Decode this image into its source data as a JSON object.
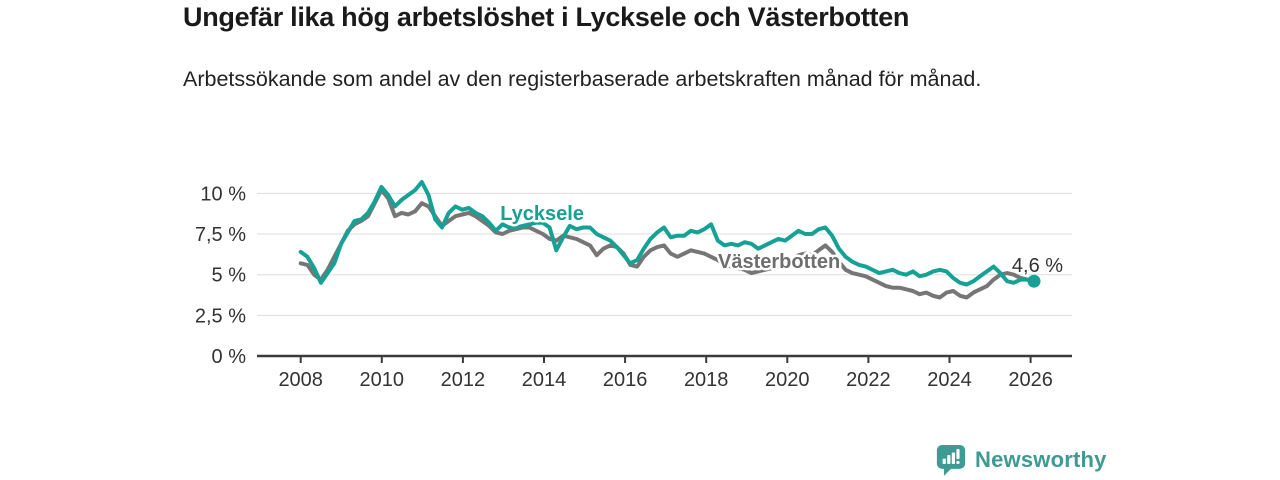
{
  "header": {
    "title": "Ungefär lika hög arbetslöshet i Lycksele och Västerbotten",
    "subtitle": "Arbetssökande som andel av den registerbaserade arbetskraften månad för månad."
  },
  "chart_data": {
    "type": "line",
    "title": "Ungefär lika hög arbetslöshet i Lycksele och Västerbotten",
    "subtitle": "Arbetssökande som andel av den registerbaserade arbetskraften månad för månad.",
    "grid": "horizontal",
    "legend_position": "inline-labels",
    "x": {
      "start": 2008.0,
      "end": 2026.083,
      "ticks": [
        {
          "value": 2008,
          "label": "2008"
        },
        {
          "value": 2010,
          "label": "2010"
        },
        {
          "value": 2012,
          "label": "2012"
        },
        {
          "value": 2014,
          "label": "2014"
        },
        {
          "value": 2016,
          "label": "2016"
        },
        {
          "value": 2018,
          "label": "2018"
        },
        {
          "value": 2020,
          "label": "2020"
        },
        {
          "value": 2022,
          "label": "2022"
        },
        {
          "value": 2024,
          "label": "2024"
        },
        {
          "value": 2026,
          "label": "2026"
        }
      ]
    },
    "y": {
      "min": 0,
      "max": 10,
      "unit": "%",
      "ticks": [
        {
          "value": 0,
          "label": "0 %"
        },
        {
          "value": 2.5,
          "label": "2,5 %"
        },
        {
          "value": 5,
          "label": "5 %"
        },
        {
          "value": 7.5,
          "label": "7,5 %"
        },
        {
          "value": 10,
          "label": "10 %"
        }
      ]
    },
    "series": [
      {
        "name": "Västerbotten",
        "color": "#767676",
        "stroke_width": 4,
        "end_dot": false,
        "values": [
          5.7,
          5.6,
          5.0,
          4.7,
          5.3,
          6.1,
          6.9,
          7.7,
          8.1,
          8.3,
          8.6,
          9.4,
          10.2,
          9.7,
          8.6,
          8.8,
          8.7,
          8.9,
          9.4,
          9.2,
          8.6,
          8.0,
          8.3,
          8.6,
          8.7,
          8.8,
          8.6,
          8.3,
          8.0,
          7.6,
          7.5,
          7.7,
          7.8,
          7.9,
          7.9,
          7.7,
          7.5,
          7.2,
          7.1,
          7.4,
          7.3,
          7.2,
          7.0,
          6.8,
          6.2,
          6.6,
          6.8,
          6.7,
          6.3,
          5.6,
          5.5,
          6.1,
          6.5,
          6.7,
          6.8,
          6.3,
          6.1,
          6.3,
          6.5,
          6.4,
          6.3,
          6.1,
          5.9,
          5.6,
          5.5,
          5.4,
          5.3,
          5.1,
          5.2,
          5.3,
          5.4,
          5.5,
          5.6,
          5.9,
          6.2,
          6.3,
          6.2,
          6.5,
          6.8,
          6.4,
          5.8,
          5.3,
          5.1,
          5.0,
          4.9,
          4.7,
          4.5,
          4.3,
          4.2,
          4.2,
          4.1,
          4.0,
          3.8,
          3.9,
          3.7,
          3.6,
          3.9,
          4.0,
          3.7,
          3.6,
          3.9,
          4.1,
          4.3,
          4.7,
          5.0,
          5.1,
          5.0,
          4.8,
          4.7,
          4.6
        ]
      },
      {
        "name": "Lycksele",
        "color": "#16a195",
        "stroke_width": 4,
        "end_dot": true,
        "values": [
          6.4,
          6.1,
          5.4,
          4.5,
          5.1,
          5.7,
          6.9,
          7.6,
          8.3,
          8.4,
          8.8,
          9.5,
          10.4,
          9.9,
          9.2,
          9.6,
          9.9,
          10.2,
          10.7,
          9.9,
          8.4,
          7.9,
          8.8,
          9.2,
          9.0,
          9.1,
          8.8,
          8.6,
          8.2,
          7.7,
          8.1,
          7.9,
          7.9,
          8.0,
          8.1,
          8.2,
          8.2,
          7.9,
          6.5,
          7.3,
          8.0,
          7.8,
          7.9,
          7.9,
          7.5,
          7.3,
          7.1,
          6.7,
          6.2,
          5.7,
          5.9,
          6.6,
          7.2,
          7.6,
          7.9,
          7.3,
          7.4,
          7.4,
          7.7,
          7.6,
          7.8,
          8.1,
          7.1,
          6.8,
          6.9,
          6.8,
          7.0,
          6.9,
          6.6,
          6.8,
          7.0,
          7.2,
          7.1,
          7.4,
          7.7,
          7.5,
          7.5,
          7.8,
          7.9,
          7.4,
          6.6,
          6.1,
          5.8,
          5.6,
          5.5,
          5.3,
          5.1,
          5.2,
          5.3,
          5.1,
          5.0,
          5.2,
          4.9,
          5.0,
          5.2,
          5.3,
          5.2,
          4.8,
          4.5,
          4.4,
          4.6,
          4.9,
          5.2,
          5.5,
          5.1,
          4.6,
          4.5,
          4.7,
          4.7,
          4.6
        ]
      }
    ],
    "labels": [
      {
        "text": "Lycksele",
        "x": 2012.92,
        "y": 8.36,
        "color": "#16a195",
        "bold": true
      },
      {
        "text": "Västerbotten",
        "x": 2018.29,
        "y": 5.41,
        "color": "#6e6e6e",
        "bold": true
      },
      {
        "text": "4,6 %",
        "x": 2025.54,
        "y": 5.17,
        "color": "#333333",
        "bold": false
      }
    ],
    "last_value": {
      "series": "Lycksele",
      "label": "4,6 %",
      "value": 4.6
    }
  },
  "footer": {
    "brand": "Newsworthy",
    "brand_color": "#3e9a93"
  }
}
